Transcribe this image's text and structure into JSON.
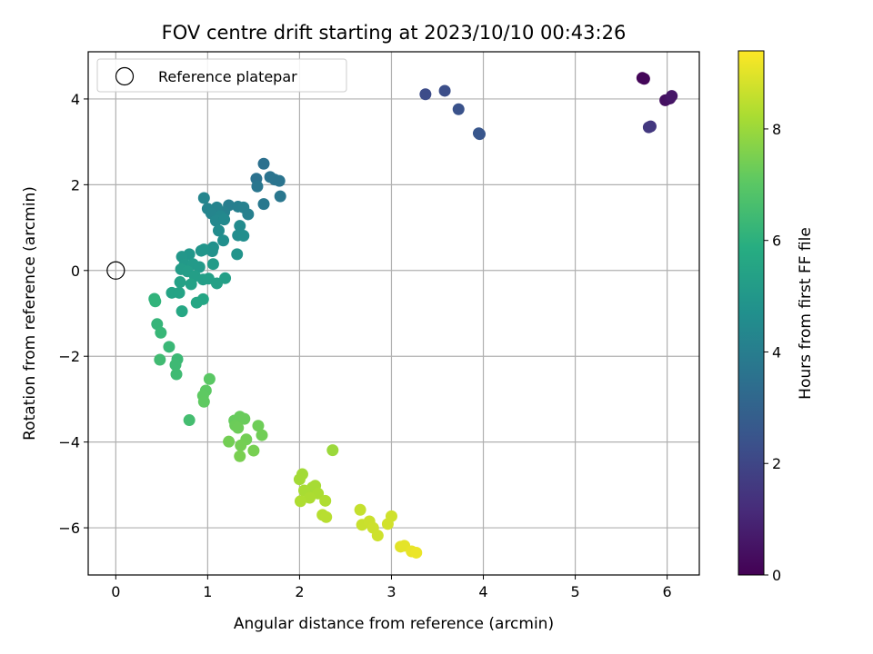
{
  "chart_data": {
    "type": "scatter",
    "title": "FOV centre drift starting at 2023/10/10 00:43:26",
    "xlabel": "Angular distance from reference (arcmin)",
    "ylabel": "Rotation from reference (arcmin)",
    "xlim": [
      -0.3,
      6.35
    ],
    "ylim": [
      -7.1,
      5.1
    ],
    "xticks": [
      0,
      1,
      2,
      3,
      4,
      5,
      6
    ],
    "yticks": [
      -6,
      -4,
      -2,
      0,
      2,
      4
    ],
    "grid": true,
    "legend": {
      "placement": "upper-left",
      "entries": [
        "Reference platepar"
      ]
    },
    "reference_point": {
      "name": "Reference platepar",
      "x": 0,
      "y": 0
    },
    "colorbar": {
      "label": "Hours from first FF file",
      "colormap": "viridis",
      "range": [
        0,
        9.4
      ],
      "ticks": [
        0,
        2,
        4,
        6,
        8
      ]
    },
    "points": [
      {
        "x": 5.73,
        "y": 4.49,
        "c": 0.1
      },
      {
        "x": 5.75,
        "y": 4.47,
        "c": 0.15
      },
      {
        "x": 5.98,
        "y": 3.97,
        "c": 0.4
      },
      {
        "x": 6.03,
        "y": 4.01,
        "c": 0.5
      },
      {
        "x": 6.05,
        "y": 4.07,
        "c": 0.6
      },
      {
        "x": 5.82,
        "y": 3.36,
        "c": 1.5
      },
      {
        "x": 5.8,
        "y": 3.34,
        "c": 1.55
      },
      {
        "x": 3.37,
        "y": 4.11,
        "c": 2.2
      },
      {
        "x": 3.58,
        "y": 4.19,
        "c": 2.3
      },
      {
        "x": 3.73,
        "y": 3.76,
        "c": 2.4
      },
      {
        "x": 3.96,
        "y": 3.18,
        "c": 2.5
      },
      {
        "x": 3.95,
        "y": 3.2,
        "c": 2.55
      },
      {
        "x": 1.61,
        "y": 2.49,
        "c": 3.5
      },
      {
        "x": 1.53,
        "y": 2.14,
        "c": 3.55
      },
      {
        "x": 1.68,
        "y": 2.18,
        "c": 3.6
      },
      {
        "x": 1.73,
        "y": 2.12,
        "c": 3.62
      },
      {
        "x": 1.78,
        "y": 2.09,
        "c": 3.65
      },
      {
        "x": 1.54,
        "y": 1.96,
        "c": 3.7
      },
      {
        "x": 1.79,
        "y": 1.73,
        "c": 3.75
      },
      {
        "x": 1.61,
        "y": 1.55,
        "c": 3.8
      },
      {
        "x": 1.23,
        "y": 1.52,
        "c": 4.0
      },
      {
        "x": 1.33,
        "y": 1.49,
        "c": 4.05
      },
      {
        "x": 1.39,
        "y": 1.47,
        "c": 4.08
      },
      {
        "x": 1.44,
        "y": 1.31,
        "c": 4.1
      },
      {
        "x": 1.18,
        "y": 1.36,
        "c": 4.15
      },
      {
        "x": 1.1,
        "y": 1.47,
        "c": 4.2
      },
      {
        "x": 1.0,
        "y": 1.44,
        "c": 4.25
      },
      {
        "x": 1.04,
        "y": 1.33,
        "c": 4.3
      },
      {
        "x": 1.14,
        "y": 1.27,
        "c": 4.35
      },
      {
        "x": 1.09,
        "y": 1.16,
        "c": 4.4
      },
      {
        "x": 1.18,
        "y": 1.19,
        "c": 4.45
      },
      {
        "x": 1.35,
        "y": 1.04,
        "c": 4.5
      },
      {
        "x": 1.12,
        "y": 0.93,
        "c": 4.55
      },
      {
        "x": 1.33,
        "y": 0.82,
        "c": 4.6
      },
      {
        "x": 1.39,
        "y": 0.81,
        "c": 4.62
      },
      {
        "x": 1.17,
        "y": 0.7,
        "c": 4.65
      },
      {
        "x": 0.96,
        "y": 1.69,
        "c": 4.3
      },
      {
        "x": 1.06,
        "y": 0.54,
        "c": 4.75
      },
      {
        "x": 1.05,
        "y": 0.45,
        "c": 4.8
      },
      {
        "x": 1.32,
        "y": 0.38,
        "c": 4.85
      },
      {
        "x": 0.93,
        "y": 0.46,
        "c": 4.9
      },
      {
        "x": 0.96,
        "y": 0.49,
        "c": 4.92
      },
      {
        "x": 0.8,
        "y": 0.38,
        "c": 4.95
      },
      {
        "x": 0.72,
        "y": 0.32,
        "c": 5.0
      },
      {
        "x": 0.75,
        "y": 0.14,
        "c": 5.05
      },
      {
        "x": 0.84,
        "y": 0.15,
        "c": 5.1
      },
      {
        "x": 0.91,
        "y": 0.08,
        "c": 5.12
      },
      {
        "x": 1.06,
        "y": 0.15,
        "c": 5.15
      },
      {
        "x": 0.71,
        "y": 0.03,
        "c": 5.2
      },
      {
        "x": 0.78,
        "y": -0.02,
        "c": 5.22
      },
      {
        "x": 0.86,
        "y": -0.13,
        "c": 5.25
      },
      {
        "x": 0.95,
        "y": -0.21,
        "c": 5.28
      },
      {
        "x": 1.01,
        "y": -0.19,
        "c": 5.3
      },
      {
        "x": 1.19,
        "y": -0.18,
        "c": 5.32
      },
      {
        "x": 1.1,
        "y": -0.3,
        "c": 5.35
      },
      {
        "x": 0.82,
        "y": -0.32,
        "c": 5.38
      },
      {
        "x": 0.7,
        "y": -0.27,
        "c": 5.4
      },
      {
        "x": 0.61,
        "y": -0.52,
        "c": 5.45
      },
      {
        "x": 0.69,
        "y": -0.52,
        "c": 5.48
      },
      {
        "x": 0.95,
        "y": -0.67,
        "c": 5.55
      },
      {
        "x": 0.88,
        "y": -0.75,
        "c": 5.58
      },
      {
        "x": 0.72,
        "y": -0.95,
        "c": 5.62
      },
      {
        "x": 0.42,
        "y": -0.66,
        "c": 6.1
      },
      {
        "x": 0.43,
        "y": -0.72,
        "c": 6.12
      },
      {
        "x": 0.45,
        "y": -1.25,
        "c": 6.2
      },
      {
        "x": 0.49,
        "y": -1.45,
        "c": 6.25
      },
      {
        "x": 0.58,
        "y": -1.78,
        "c": 6.3
      },
      {
        "x": 0.67,
        "y": -2.07,
        "c": 6.35
      },
      {
        "x": 0.65,
        "y": -2.2,
        "c": 6.4
      },
      {
        "x": 0.66,
        "y": -2.42,
        "c": 6.42
      },
      {
        "x": 0.48,
        "y": -2.08,
        "c": 6.45
      },
      {
        "x": 0.8,
        "y": -3.49,
        "c": 6.55
      },
      {
        "x": 1.02,
        "y": -2.53,
        "c": 7.0
      },
      {
        "x": 0.98,
        "y": -2.8,
        "c": 7.05
      },
      {
        "x": 0.95,
        "y": -2.92,
        "c": 7.08
      },
      {
        "x": 0.96,
        "y": -3.06,
        "c": 7.1
      },
      {
        "x": 1.29,
        "y": -3.5,
        "c": 7.2
      },
      {
        "x": 1.35,
        "y": -3.41,
        "c": 7.22
      },
      {
        "x": 1.4,
        "y": -3.46,
        "c": 7.25
      },
      {
        "x": 1.3,
        "y": -3.61,
        "c": 7.28
      },
      {
        "x": 1.33,
        "y": -3.67,
        "c": 7.3
      },
      {
        "x": 1.55,
        "y": -3.62,
        "c": 7.32
      },
      {
        "x": 1.59,
        "y": -3.84,
        "c": 7.35
      },
      {
        "x": 1.42,
        "y": -3.94,
        "c": 7.38
      },
      {
        "x": 1.23,
        "y": -3.99,
        "c": 7.4
      },
      {
        "x": 1.36,
        "y": -4.08,
        "c": 7.42
      },
      {
        "x": 1.5,
        "y": -4.2,
        "c": 7.45
      },
      {
        "x": 1.35,
        "y": -4.33,
        "c": 7.48
      },
      {
        "x": 2.36,
        "y": -4.19,
        "c": 8.0
      },
      {
        "x": 2.03,
        "y": -4.75,
        "c": 8.1
      },
      {
        "x": 2.0,
        "y": -4.87,
        "c": 8.12
      },
      {
        "x": 2.14,
        "y": -5.06,
        "c": 8.15
      },
      {
        "x": 2.17,
        "y": -5.02,
        "c": 8.18
      },
      {
        "x": 2.05,
        "y": -5.13,
        "c": 8.2
      },
      {
        "x": 2.2,
        "y": -5.2,
        "c": 8.22
      },
      {
        "x": 2.11,
        "y": -5.3,
        "c": 8.25
      },
      {
        "x": 2.01,
        "y": -5.38,
        "c": 8.28
      },
      {
        "x": 2.28,
        "y": -5.37,
        "c": 8.3
      },
      {
        "x": 2.25,
        "y": -5.7,
        "c": 8.4
      },
      {
        "x": 2.29,
        "y": -5.75,
        "c": 8.42
      },
      {
        "x": 2.66,
        "y": -5.58,
        "c": 8.6
      },
      {
        "x": 2.68,
        "y": -5.93,
        "c": 8.65
      },
      {
        "x": 2.76,
        "y": -5.85,
        "c": 8.68
      },
      {
        "x": 2.8,
        "y": -6.0,
        "c": 8.7
      },
      {
        "x": 2.85,
        "y": -6.18,
        "c": 8.72
      },
      {
        "x": 3.0,
        "y": -5.73,
        "c": 8.75
      },
      {
        "x": 2.96,
        "y": -5.91,
        "c": 8.78
      },
      {
        "x": 3.1,
        "y": -6.44,
        "c": 9.0
      },
      {
        "x": 3.14,
        "y": -6.42,
        "c": 9.05
      },
      {
        "x": 3.22,
        "y": -6.55,
        "c": 9.1
      },
      {
        "x": 3.27,
        "y": -6.58,
        "c": 9.15
      }
    ]
  }
}
